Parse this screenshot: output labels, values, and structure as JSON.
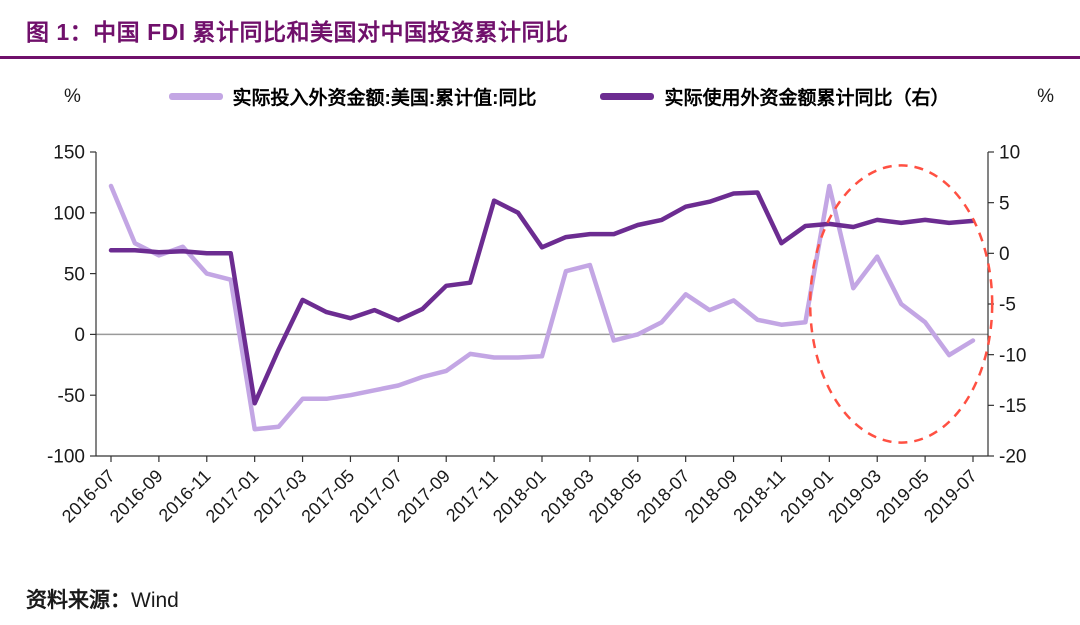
{
  "header": {
    "title": "图 1：中国 FDI 累计同比和美国对中国投资累计同比",
    "accent_color": "#70106B"
  },
  "legend": {
    "left_unit": "%",
    "right_unit": "%",
    "items": [
      {
        "label": "实际投入外资金额:美国:累计值:同比",
        "color": "#C3A6E4"
      },
      {
        "label": "实际使用外资金额累计同比（右）",
        "color": "#6C2C91"
      }
    ]
  },
  "footer": {
    "source_prefix": "资料来源：",
    "source_value": "Wind"
  },
  "chart_data": {
    "type": "line",
    "title": "中国 FDI 累计同比和美国对中国投资累计同比",
    "x": [
      "2016-07",
      "2016-08",
      "2016-09",
      "2016-10",
      "2016-11",
      "2016-12",
      "2017-01",
      "2017-02",
      "2017-03",
      "2017-04",
      "2017-05",
      "2017-06",
      "2017-07",
      "2017-08",
      "2017-09",
      "2017-10",
      "2017-11",
      "2017-12",
      "2018-01",
      "2018-02",
      "2018-03",
      "2018-04",
      "2018-05",
      "2018-06",
      "2018-07",
      "2018-08",
      "2018-09",
      "2018-10",
      "2018-11",
      "2018-12",
      "2019-01",
      "2019-02",
      "2019-03",
      "2019-04",
      "2019-05",
      "2019-06",
      "2019-07"
    ],
    "x_tick_labels": [
      "2016-07",
      "2016-09",
      "2016-11",
      "2017-01",
      "2017-03",
      "2017-05",
      "2017-07",
      "2017-09",
      "2017-11",
      "2018-01",
      "2018-03",
      "2018-05",
      "2018-07",
      "2018-09",
      "2018-11",
      "2019-01",
      "2019-03",
      "2019-05",
      "2019-07"
    ],
    "left_axis": {
      "unit": "%",
      "range": [
        -100,
        150
      ],
      "ticks": [
        150,
        100,
        50,
        0,
        -50,
        -100
      ]
    },
    "right_axis": {
      "unit": "%",
      "range": [
        -20,
        10
      ],
      "ticks": [
        10,
        5,
        0,
        -5,
        -10,
        -15,
        -20
      ]
    },
    "grid": "off",
    "zero_line": true,
    "legend_position": "top",
    "series": [
      {
        "name": "实际投入外资金额:美国:累计值:同比",
        "axis": "left",
        "color": "#C3A6E4",
        "values": [
          122,
          75,
          65,
          72,
          50,
          45,
          -78,
          -76,
          -53,
          -53,
          -50,
          -46,
          -42,
          -35,
          -30,
          -16,
          -19,
          -19,
          -18,
          52,
          57,
          -5,
          0,
          10,
          33,
          20,
          28,
          12,
          8,
          10,
          122,
          38,
          64,
          25,
          10,
          -17,
          -5
        ]
      },
      {
        "name": "实际使用外资金额累计同比（右）",
        "axis": "right",
        "color": "#6C2C91",
        "values": [
          0.3,
          0.3,
          0.1,
          0.2,
          0.0,
          0.0,
          -14.8,
          -9.5,
          -4.6,
          -5.8,
          -6.4,
          -5.6,
          -6.6,
          -5.5,
          -3.2,
          -2.9,
          5.2,
          4.0,
          0.6,
          1.6,
          1.9,
          1.9,
          2.8,
          3.3,
          4.6,
          5.1,
          5.9,
          6.0,
          1.0,
          2.7,
          2.9,
          2.6,
          3.3,
          3.0,
          3.3,
          3.0,
          3.2
        ]
      }
    ],
    "annotations": [
      {
        "type": "ellipse",
        "style": "dashed",
        "color": "#FF5042",
        "x_center_index": 33,
        "y_center_left_axis": 25,
        "rx_in_months": 3.8,
        "ry_in_left_units": 114
      }
    ]
  }
}
